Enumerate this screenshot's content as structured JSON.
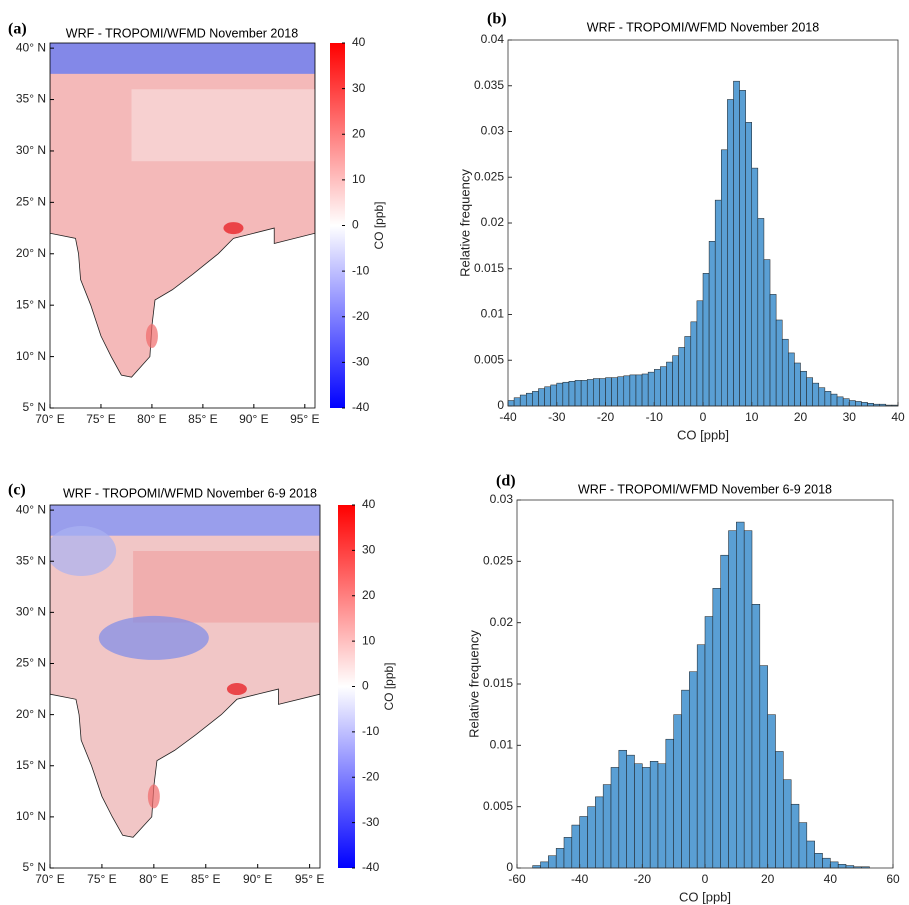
{
  "chart_data": [
    {
      "type": "map",
      "panel": "(a)",
      "title": "WRF - TROPOMI/WFMD November 2018",
      "xlim": [
        70,
        96
      ],
      "xticks": [
        {
          "value": 70,
          "label": "70° E"
        },
        {
          "value": 75,
          "label": "75° E"
        },
        {
          "value": 80,
          "label": "80° E"
        },
        {
          "value": 85,
          "label": "85° E"
        },
        {
          "value": 90,
          "label": "90° E"
        },
        {
          "value": 95,
          "label": "95° E"
        }
      ],
      "ylim": [
        5,
        40.5
      ],
      "yticks": [
        {
          "value": 5,
          "label": "5° N"
        },
        {
          "value": 10,
          "label": "10° N"
        },
        {
          "value": 15,
          "label": "15° N"
        },
        {
          "value": 20,
          "label": "20° N"
        },
        {
          "value": 25,
          "label": "25° N"
        },
        {
          "value": 30,
          "label": "30° N"
        },
        {
          "value": 35,
          "label": "35° N"
        },
        {
          "value": 40,
          "label": "40° N"
        }
      ],
      "colorbar": {
        "label": "CO [ppb]",
        "lim": [
          -40,
          40
        ],
        "ticks": [
          -40,
          -30,
          -20,
          -10,
          0,
          10,
          20,
          30,
          40
        ],
        "colors": [
          "#0000ff",
          "#ffffff",
          "#ff0000"
        ]
      }
    },
    {
      "type": "histogram",
      "panel": "(b)",
      "title": "WRF - TROPOMI/WFMD November 2018",
      "xlabel": "CO [ppb]",
      "ylabel": "Relative frequency",
      "color": "#5a9fd4",
      "bins": [
        -40,
        -38.75,
        -37.5,
        -36.25,
        -35,
        -33.75,
        -32.5,
        -31.25,
        -30,
        -28.75,
        -27.5,
        -26.25,
        -25,
        -23.75,
        -22.5,
        -21.25,
        -20,
        -18.75,
        -17.5,
        -16.25,
        -15,
        -13.75,
        -12.5,
        -11.25,
        -10,
        -8.75,
        -7.5,
        -6.25,
        -5,
        -3.75,
        -2.5,
        -1.25,
        0,
        1.25,
        2.5,
        3.75,
        5,
        6.25,
        7.5,
        8.75,
        10,
        11.25,
        12.5,
        13.75,
        15,
        16.25,
        17.5,
        18.75,
        20,
        21.25,
        22.5,
        23.75,
        25,
        26.25,
        27.5,
        28.75,
        30,
        31.25,
        32.5,
        33.75,
        35,
        36.25,
        37.5,
        38.75,
        40
      ],
      "values": [
        0.0006,
        0.0009,
        0.0012,
        0.0014,
        0.0016,
        0.0019,
        0.0021,
        0.0023,
        0.0025,
        0.0026,
        0.0027,
        0.0028,
        0.0028,
        0.0029,
        0.003,
        0.003,
        0.0031,
        0.0031,
        0.0032,
        0.0033,
        0.0034,
        0.0034,
        0.0035,
        0.0037,
        0.004,
        0.0043,
        0.0048,
        0.0055,
        0.0064,
        0.0076,
        0.0092,
        0.0115,
        0.0145,
        0.018,
        0.0225,
        0.028,
        0.0335,
        0.0355,
        0.0345,
        0.031,
        0.026,
        0.0205,
        0.016,
        0.0122,
        0.0094,
        0.0073,
        0.0058,
        0.0047,
        0.0038,
        0.0031,
        0.0025,
        0.002,
        0.0016,
        0.0013,
        0.001,
        0.0008,
        0.0006,
        0.0005,
        0.0004,
        0.0003,
        0.0002,
        0.0002,
        0.0001,
        0.0001
      ],
      "xlim": [
        -40,
        40
      ],
      "xticks": [
        -40,
        -30,
        -20,
        -10,
        0,
        10,
        20,
        30,
        40
      ],
      "ylim": [
        0,
        0.04
      ],
      "yticks": [
        0,
        0.005,
        0.01,
        0.015,
        0.02,
        0.025,
        0.03,
        0.035,
        0.04
      ]
    },
    {
      "type": "map",
      "panel": "(c)",
      "title": "WRF - TROPOMI/WFMD November 6-9 2018",
      "xlim": [
        70,
        96
      ],
      "xticks": [
        {
          "value": 70,
          "label": "70° E"
        },
        {
          "value": 75,
          "label": "75° E"
        },
        {
          "value": 80,
          "label": "80° E"
        },
        {
          "value": 85,
          "label": "85° E"
        },
        {
          "value": 90,
          "label": "90° E"
        },
        {
          "value": 95,
          "label": "95° E"
        }
      ],
      "ylim": [
        5,
        40.5
      ],
      "yticks": [
        {
          "value": 5,
          "label": "5° N"
        },
        {
          "value": 10,
          "label": "10° N"
        },
        {
          "value": 15,
          "label": "15° N"
        },
        {
          "value": 20,
          "label": "20° N"
        },
        {
          "value": 25,
          "label": "25° N"
        },
        {
          "value": 30,
          "label": "30° N"
        },
        {
          "value": 35,
          "label": "35° N"
        },
        {
          "value": 40,
          "label": "40° N"
        }
      ],
      "colorbar": {
        "label": "CO [ppb]",
        "lim": [
          -40,
          40
        ],
        "ticks": [
          -40,
          -30,
          -20,
          -10,
          0,
          10,
          20,
          30,
          40
        ],
        "colors": [
          "#0000ff",
          "#ffffff",
          "#ff0000"
        ]
      }
    },
    {
      "type": "histogram",
      "panel": "(d)",
      "title": "WRF - TROPOMI/WFMD November 6-9 2018",
      "xlabel": "CO [ppb]",
      "ylabel": "Relative frequency",
      "color": "#5a9fd4",
      "bins": [
        -60,
        -57.5,
        -55,
        -52.5,
        -50,
        -47.5,
        -45,
        -42.5,
        -40,
        -37.5,
        -35,
        -32.5,
        -30,
        -27.5,
        -25,
        -22.5,
        -20,
        -17.5,
        -15,
        -12.5,
        -10,
        -7.5,
        -5,
        -2.5,
        0,
        2.5,
        5,
        7.5,
        10,
        12.5,
        15,
        17.5,
        20,
        22.5,
        25,
        27.5,
        30,
        32.5,
        35,
        37.5,
        40,
        42.5,
        45,
        47.5,
        50,
        52.5,
        55,
        57.5,
        60
      ],
      "values": [
        0,
        0,
        0.0002,
        0.0005,
        0.001,
        0.0016,
        0.0025,
        0.0035,
        0.0042,
        0.005,
        0.0058,
        0.0068,
        0.0082,
        0.0096,
        0.0092,
        0.0085,
        0.0082,
        0.0087,
        0.0085,
        0.0105,
        0.0125,
        0.0145,
        0.016,
        0.0182,
        0.0205,
        0.0228,
        0.0255,
        0.0275,
        0.0282,
        0.0275,
        0.0215,
        0.0165,
        0.0125,
        0.0095,
        0.0072,
        0.0052,
        0.0037,
        0.0022,
        0.0012,
        0.0008,
        0.0005,
        0.0003,
        0.0002,
        0.0001,
        0.0001,
        0,
        0,
        0
      ],
      "xlim": [
        -60,
        60
      ],
      "xticks": [
        -60,
        -40,
        -20,
        0,
        20,
        40,
        60
      ],
      "ylim": [
        0,
        0.03
      ],
      "yticks": [
        0,
        0.005,
        0.01,
        0.015,
        0.02,
        0.025,
        0.03
      ]
    }
  ]
}
